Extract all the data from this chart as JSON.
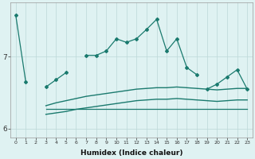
{
  "xlabel": "Humidex (Indice chaleur)",
  "x": [
    0,
    1,
    2,
    3,
    4,
    5,
    6,
    7,
    8,
    9,
    10,
    11,
    12,
    13,
    14,
    15,
    16,
    17,
    18,
    19,
    20,
    21,
    22,
    23
  ],
  "line_main": [
    7.58,
    6.65,
    null,
    6.58,
    6.68,
    6.78,
    null,
    7.02,
    7.02,
    7.08,
    7.25,
    7.2,
    7.25,
    7.38,
    7.52,
    7.08,
    7.25,
    6.85,
    6.75,
    null,
    null,
    null,
    null,
    null
  ],
  "line_upper": [
    null,
    null,
    null,
    6.32,
    6.36,
    6.39,
    6.42,
    6.45,
    6.47,
    6.49,
    6.51,
    6.53,
    6.55,
    6.56,
    6.57,
    6.57,
    6.58,
    6.57,
    6.56,
    6.55,
    6.54,
    6.55,
    6.56,
    6.56
  ],
  "line_flat": [
    null,
    null,
    null,
    6.27,
    6.27,
    6.27,
    6.27,
    6.27,
    6.27,
    6.27,
    6.27,
    6.27,
    6.27,
    6.27,
    6.27,
    6.27,
    6.27,
    6.27,
    6.27,
    6.27,
    6.27,
    6.27,
    6.27,
    6.27
  ],
  "line_lower": [
    null,
    null,
    null,
    6.2,
    6.22,
    6.24,
    6.27,
    6.29,
    6.31,
    6.33,
    6.35,
    6.37,
    6.39,
    6.4,
    6.41,
    6.41,
    6.42,
    6.41,
    6.4,
    6.39,
    6.38,
    6.39,
    6.4,
    6.4
  ],
  "line_right": [
    null,
    null,
    null,
    null,
    null,
    null,
    null,
    null,
    null,
    null,
    null,
    null,
    null,
    null,
    null,
    null,
    null,
    null,
    null,
    6.55,
    6.62,
    6.72,
    6.82,
    6.55
  ],
  "color": "#1a7a6e",
  "bg_color": "#dff2f2",
  "grid_color": "#bcd8d8",
  "ylim": [
    5.88,
    7.75
  ],
  "yticks": [
    6,
    7
  ],
  "xlim": [
    -0.5,
    23.5
  ],
  "figw": 3.2,
  "figh": 2.0,
  "dpi": 100
}
